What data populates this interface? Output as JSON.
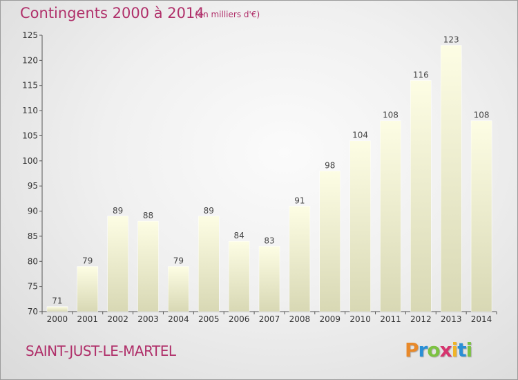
{
  "header": {
    "title": "Contingents 2000 à 2014",
    "subtitle": "(en milliers d'€)"
  },
  "footer": {
    "commune": "SAINT-JUST-LE-MARTEL",
    "brand_letters": [
      "P",
      "r",
      "o",
      "x",
      "i",
      "t",
      "i"
    ],
    "brand_colors": [
      "#e8892a",
      "#2a8fd6",
      "#7cc242",
      "#d6346e",
      "#f0b428",
      "#2a8fd6",
      "#7cc242"
    ]
  },
  "chart_data": {
    "type": "bar",
    "title": "Contingents 2000 à 2014",
    "subtitle": "(en milliers d'€)",
    "categories": [
      "2000",
      "2001",
      "2002",
      "2003",
      "2004",
      "2005",
      "2006",
      "2007",
      "2008",
      "2009",
      "2010",
      "2011",
      "2012",
      "2013",
      "2014"
    ],
    "values": [
      71,
      79,
      89,
      88,
      79,
      89,
      84,
      83,
      91,
      98,
      104,
      108,
      116,
      123,
      108
    ],
    "ylim": [
      70,
      125
    ],
    "yticks": [
      70,
      75,
      80,
      85,
      90,
      95,
      100,
      105,
      110,
      115,
      120,
      125
    ],
    "grid": false,
    "bar_color_top": "#fdfde4",
    "bar_color_bottom": "#d8d8b4"
  }
}
